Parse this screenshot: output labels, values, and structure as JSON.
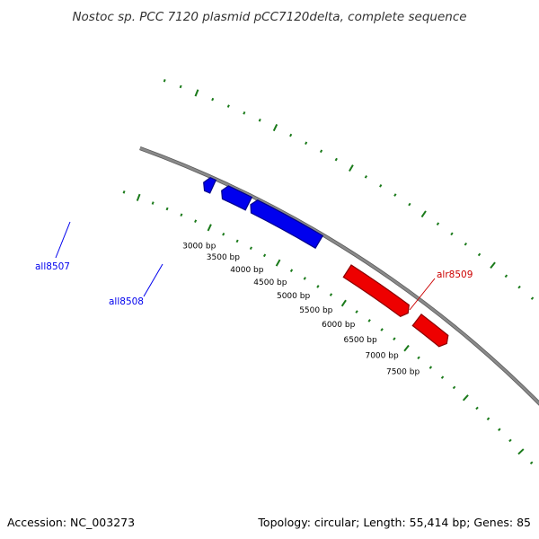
{
  "title": "Nostoc sp. PCC 7120 plasmid pCC7120delta, complete sequence",
  "accession_text": "Accession: NC_003273",
  "topology_text": "Topology: circular; Length: 55,414 bp; Genes: 85",
  "colors": {
    "backbone": "#8a8a8a",
    "reverse_strand_gene": "#0000ee",
    "forward_strand_gene": "#ee0000",
    "gc_skew_marks": "#1a7a1a"
  },
  "scale": {
    "unit": "bp",
    "tick_labels": [
      "3000 bp",
      "3500 bp",
      "4000 bp",
      "4500 bp",
      "5000 bp",
      "5500 bp",
      "6000 bp",
      "6500 bp",
      "7000 bp",
      "7500 bp"
    ]
  },
  "genes": [
    {
      "name": "",
      "strand": "reverse",
      "start_bp": 2600,
      "end_bp": 2780
    },
    {
      "name": "all8507",
      "strand": "reverse",
      "start_bp": 2950,
      "end_bp": 3480
    },
    {
      "name": "all8508",
      "strand": "reverse",
      "start_bp": 3520,
      "end_bp": 4900
    },
    {
      "name": "alr8509",
      "strand": "forward",
      "start_bp": 5600,
      "end_bp": 6920
    },
    {
      "name": "",
      "strand": "forward",
      "start_bp": 7120,
      "end_bp": 7800
    }
  ],
  "gene_labels": [
    {
      "gene": "all8507",
      "text": "all8507",
      "color": "#0000ee"
    },
    {
      "gene": "all8508",
      "text": "all8508",
      "color": "#0000ee"
    },
    {
      "gene": "alr8509",
      "text": "alr8509",
      "color": "#cc0000"
    }
  ]
}
